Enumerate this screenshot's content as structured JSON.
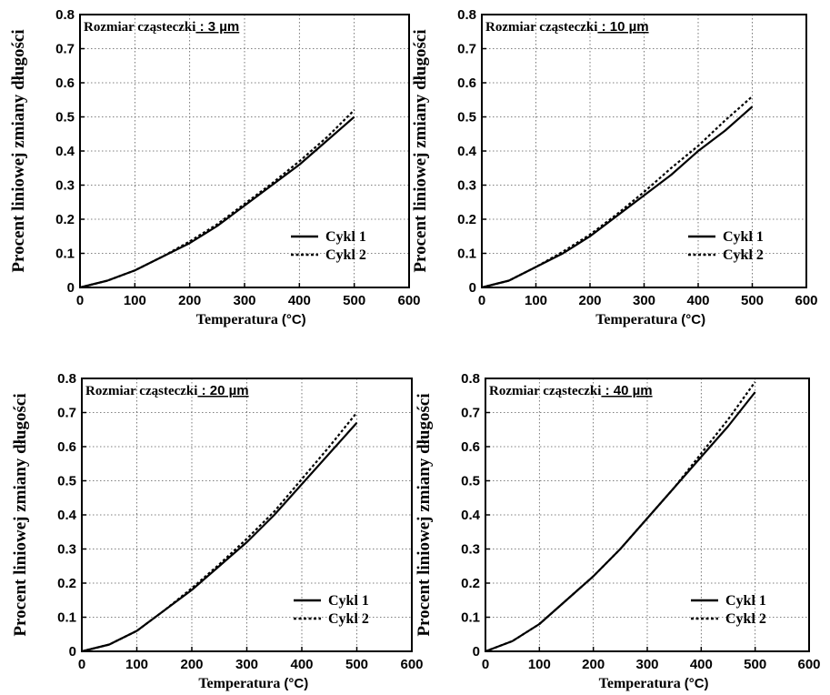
{
  "charts": [
    {
      "title_prefix": "Rozmiar cząsteczki",
      "title_value": ": 3 µm",
      "ylabel": "Procent liniowej zmiany długości",
      "xlabel": "Temperatura",
      "xlabel_unit": "(°C)",
      "x_ticks": [
        0,
        100,
        200,
        300,
        400,
        500,
        600
      ],
      "y_ticks": [
        0,
        0.1,
        0.2,
        0.3,
        0.4,
        0.5,
        0.6,
        0.7,
        0.8
      ],
      "legend": [
        "Cykl 1",
        "Cykl 2"
      ]
    },
    {
      "title_prefix": "Rozmiar cząsteczki",
      "title_value": ": 10 µm",
      "ylabel": "Procent liniowej zmiany długości",
      "xlabel": "Temperatura",
      "xlabel_unit": "(°C)",
      "x_ticks": [
        0,
        100,
        200,
        300,
        400,
        500,
        600
      ],
      "y_ticks": [
        0,
        0.1,
        0.2,
        0.3,
        0.4,
        0.5,
        0.6,
        0.7,
        0.8
      ],
      "legend": [
        "Cykl 1",
        "Cykl 2"
      ]
    },
    {
      "title_prefix": "Rozmiar cząsteczki",
      "title_value": ": 20 µm",
      "ylabel": "Procent liniowej zmiany długości",
      "xlabel": "Temperatura",
      "xlabel_unit": "(°C)",
      "x_ticks": [
        0,
        100,
        200,
        300,
        400,
        500,
        600
      ],
      "y_ticks": [
        0,
        0.1,
        0.2,
        0.3,
        0.4,
        0.5,
        0.6,
        0.7,
        0.8
      ],
      "legend": [
        "Cykl 1",
        "Cykl 2"
      ]
    },
    {
      "title_prefix": "Rozmiar cząsteczki",
      "title_value": ": 40 µm",
      "ylabel": "Procent liniowej zmiany długości",
      "xlabel": "Temperatura",
      "xlabel_unit": "(°C)",
      "x_ticks": [
        0,
        100,
        200,
        300,
        400,
        500,
        600
      ],
      "y_ticks": [
        0,
        0.1,
        0.2,
        0.3,
        0.4,
        0.5,
        0.6,
        0.7,
        0.8
      ],
      "legend": [
        "Cykl 1",
        "Cykl 2"
      ]
    }
  ],
  "chart_data": [
    {
      "type": "line",
      "xlim": [
        0,
        600
      ],
      "ylim": [
        0,
        0.8
      ],
      "grid": true,
      "legend_position": "lower-right",
      "x": [
        0,
        50,
        100,
        150,
        200,
        250,
        300,
        350,
        400,
        450,
        500
      ],
      "series": [
        {
          "name": "Cykl 1",
          "style": "solid",
          "values": [
            0,
            0.02,
            0.05,
            0.09,
            0.13,
            0.18,
            0.24,
            0.3,
            0.36,
            0.43,
            0.5
          ]
        },
        {
          "name": "Cykl 2",
          "style": "dashed",
          "values": [
            0,
            0.02,
            0.05,
            0.09,
            0.135,
            0.185,
            0.245,
            0.305,
            0.37,
            0.44,
            0.52
          ]
        }
      ]
    },
    {
      "type": "line",
      "xlim": [
        0,
        600
      ],
      "ylim": [
        0,
        0.8
      ],
      "grid": true,
      "legend_position": "lower-right",
      "x": [
        0,
        50,
        100,
        150,
        200,
        250,
        300,
        350,
        400,
        450,
        500
      ],
      "series": [
        {
          "name": "Cykl 1",
          "style": "solid",
          "values": [
            0,
            0.02,
            0.06,
            0.1,
            0.15,
            0.21,
            0.27,
            0.33,
            0.4,
            0.46,
            0.53
          ]
        },
        {
          "name": "Cykl 2",
          "style": "dashed",
          "values": [
            0,
            0.02,
            0.06,
            0.105,
            0.155,
            0.215,
            0.28,
            0.35,
            0.415,
            0.49,
            0.56
          ]
        }
      ]
    },
    {
      "type": "line",
      "xlim": [
        0,
        600
      ],
      "ylim": [
        0,
        0.8
      ],
      "grid": true,
      "legend_position": "lower-right",
      "x": [
        0,
        50,
        100,
        150,
        200,
        250,
        300,
        350,
        400,
        450,
        500
      ],
      "series": [
        {
          "name": "Cykl 1",
          "style": "solid",
          "values": [
            0,
            0.02,
            0.06,
            0.12,
            0.18,
            0.25,
            0.32,
            0.4,
            0.49,
            0.58,
            0.67
          ]
        },
        {
          "name": "Cykl 2",
          "style": "dashed",
          "values": [
            0,
            0.02,
            0.06,
            0.12,
            0.185,
            0.255,
            0.33,
            0.41,
            0.505,
            0.6,
            0.7
          ]
        }
      ]
    },
    {
      "type": "line",
      "xlim": [
        0,
        600
      ],
      "ylim": [
        0,
        0.8
      ],
      "grid": true,
      "legend_position": "lower-right",
      "x": [
        0,
        50,
        100,
        150,
        200,
        250,
        300,
        350,
        400,
        450,
        500
      ],
      "series": [
        {
          "name": "Cykl 1",
          "style": "solid",
          "values": [
            0,
            0.03,
            0.08,
            0.15,
            0.22,
            0.3,
            0.39,
            0.48,
            0.57,
            0.66,
            0.76
          ]
        },
        {
          "name": "Cykl 2",
          "style": "dashed",
          "values": [
            0,
            0.03,
            0.08,
            0.15,
            0.22,
            0.3,
            0.39,
            0.48,
            0.58,
            0.68,
            0.79
          ]
        }
      ]
    }
  ]
}
